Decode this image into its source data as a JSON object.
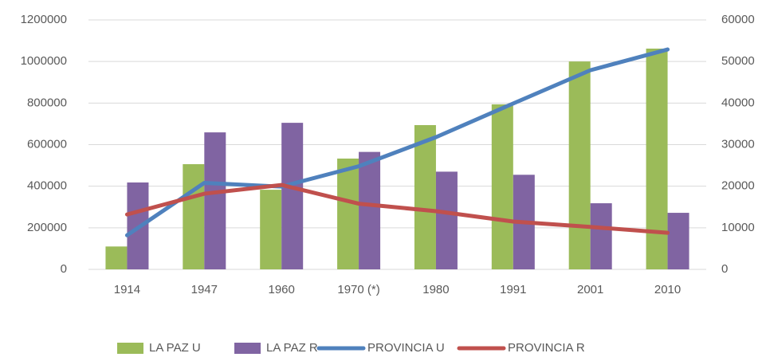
{
  "chart_data": {
    "type": "bar",
    "categories": [
      "1914",
      "1947",
      "1960",
      "1970 (*)",
      "1980",
      "1991",
      "2001",
      "2010"
    ],
    "series": [
      {
        "name": "LA PAZ U",
        "type": "bar",
        "color": "#9bbb59",
        "values": [
          110000,
          506000,
          383000,
          533000,
          694000,
          794000,
          1000000,
          1062000
        ]
      },
      {
        "name": "LA PAZ R",
        "type": "bar",
        "color": "#8064a2",
        "values": [
          418000,
          659000,
          705000,
          565000,
          470000,
          455000,
          318000,
          272000
        ]
      },
      {
        "name": "PROVINCIA U",
        "type": "line",
        "axis": "y2",
        "color": "#4f81bd",
        "values": [
          8200,
          20800,
          19900,
          24800,
          31800,
          39900,
          47900,
          52900
        ]
      },
      {
        "name": "PROVINCIA R",
        "type": "line",
        "axis": "y2",
        "color": "#c0504d",
        "values": [
          13200,
          18200,
          20300,
          15800,
          14000,
          11500,
          10200,
          8800
        ]
      }
    ],
    "ylim": [
      0,
      1200000
    ],
    "yticks": [
      0,
      200000,
      400000,
      600000,
      800000,
      1000000,
      1200000
    ],
    "y2lim": [
      0,
      60000
    ],
    "y2ticks": [
      0,
      10000,
      20000,
      30000,
      40000,
      50000,
      60000
    ],
    "grid": true,
    "legend": "bottom"
  }
}
